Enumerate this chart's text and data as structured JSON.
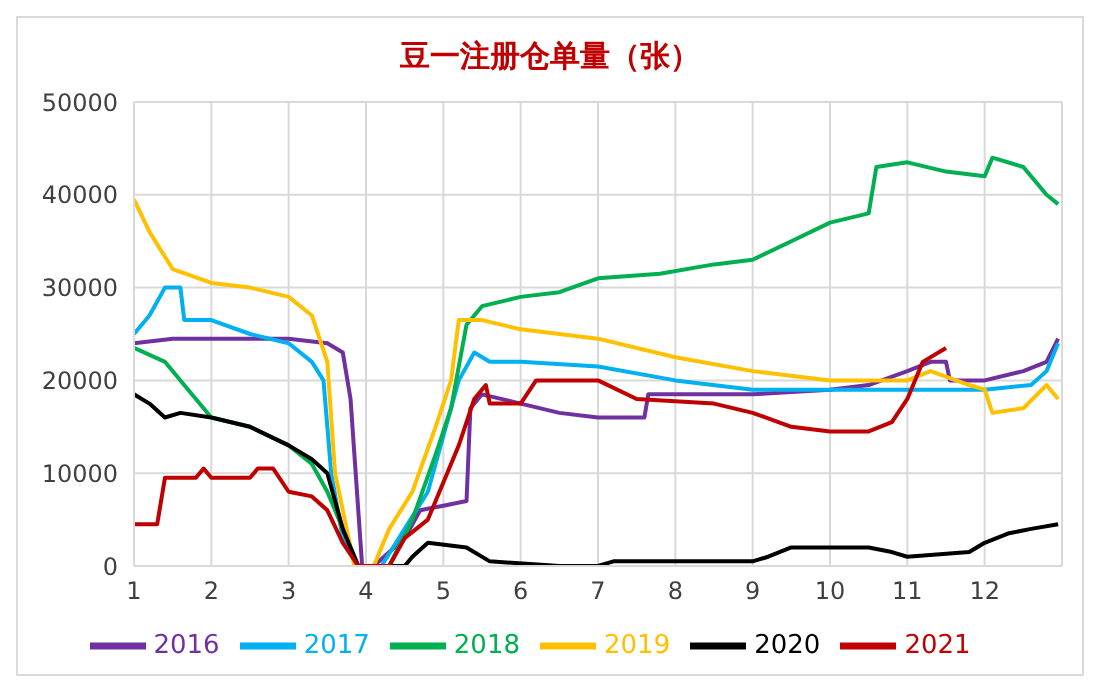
{
  "chart_data": {
    "type": "line",
    "title": "豆一注册仓单量（张）",
    "xlim": [
      1,
      13
    ],
    "xticks": [
      1,
      2,
      3,
      4,
      5,
      6,
      7,
      8,
      9,
      10,
      11,
      12
    ],
    "ylim": [
      0,
      50000
    ],
    "yticks": [
      0,
      10000,
      20000,
      30000,
      40000,
      50000
    ],
    "grid": true,
    "legend": "bottom",
    "marker": "none",
    "line_style": "solid",
    "series": [
      {
        "name": "2016",
        "color": "#7030a0",
        "x": [
          1,
          1.5,
          3,
          3.5,
          3.7,
          3.8,
          3.85,
          3.95,
          4.1,
          4.5,
          4.7,
          5,
          5.3,
          5.35,
          5.5,
          6,
          6.5,
          7,
          7.6,
          7.65,
          9,
          10,
          10.5,
          11,
          11.3,
          11.5,
          11.55,
          12,
          12.5,
          12.8,
          12.95
        ],
        "values": [
          24000,
          24500,
          24500,
          24000,
          23000,
          18000,
          12000,
          0,
          0,
          3000,
          6000,
          6500,
          7000,
          17000,
          18500,
          17500,
          16500,
          16000,
          16000,
          18500,
          18500,
          19000,
          19500,
          21000,
          22000,
          22000,
          20000,
          20000,
          21000,
          22000,
          24500
        ]
      },
      {
        "name": "2017",
        "color": "#00b0f0",
        "x": [
          1,
          1.2,
          1.4,
          1.6,
          1.65,
          2,
          2.5,
          3,
          3.3,
          3.45,
          3.55,
          3.7,
          3.9,
          4.2,
          4.5,
          4.8,
          5,
          5.2,
          5.4,
          5.6,
          6,
          7,
          8,
          9,
          10,
          11,
          12,
          12.6,
          12.8,
          12.95
        ],
        "values": [
          25000,
          27000,
          30000,
          30000,
          26500,
          26500,
          25000,
          24000,
          22000,
          20000,
          10000,
          3000,
          0,
          0,
          4000,
          8000,
          14000,
          20000,
          23000,
          22000,
          22000,
          21500,
          20000,
          19000,
          19000,
          19000,
          19000,
          19500,
          21000,
          24000
        ]
      },
      {
        "name": "2018",
        "color": "#00b050",
        "x": [
          1,
          1.4,
          1.7,
          2,
          2.5,
          3,
          3.3,
          3.5,
          3.7,
          3.9,
          4.3,
          4.6,
          4.9,
          5.1,
          5.3,
          5.5,
          6,
          6.5,
          7,
          7.8,
          8.5,
          9,
          9.5,
          10,
          10.5,
          10.6,
          11,
          11.5,
          12,
          12.1,
          12.5,
          12.8,
          12.95
        ],
        "values": [
          23500,
          22000,
          19000,
          16000,
          15000,
          13000,
          11000,
          8000,
          4000,
          0,
          0,
          5000,
          12000,
          17000,
          26000,
          28000,
          29000,
          29500,
          31000,
          31500,
          32500,
          33000,
          35000,
          37000,
          38000,
          43000,
          43500,
          42500,
          42000,
          44000,
          43000,
          40000,
          39000
        ]
      },
      {
        "name": "2019",
        "color": "#ffc000",
        "x": [
          1,
          1.2,
          1.5,
          2,
          2.5,
          3,
          3.3,
          3.5,
          3.6,
          3.85,
          4.1,
          4.3,
          4.6,
          4.9,
          5.1,
          5.2,
          5.5,
          6,
          7,
          8,
          9,
          10,
          11,
          11.3,
          11.8,
          12,
          12.1,
          12.5,
          12.8,
          12.95
        ],
        "values": [
          39500,
          36000,
          32000,
          30500,
          30000,
          29000,
          27000,
          22000,
          10000,
          0,
          0,
          4000,
          8000,
          15000,
          20000,
          26500,
          26500,
          25500,
          24500,
          22500,
          21000,
          20000,
          20000,
          21000,
          19500,
          19000,
          16500,
          17000,
          19500,
          18000
        ]
      },
      {
        "name": "2020",
        "color": "#000000",
        "x": [
          1,
          1.2,
          1.4,
          1.6,
          2,
          2.5,
          3,
          3.3,
          3.5,
          3.7,
          3.9,
          4.5,
          4.6,
          4.8,
          5.3,
          5.6,
          6.5,
          7,
          7.2,
          8.5,
          9,
          9.2,
          9.5,
          10.5,
          10.8,
          11,
          11.8,
          12,
          12.3,
          12.6,
          12.95
        ],
        "values": [
          18500,
          17500,
          16000,
          16500,
          16000,
          15000,
          13000,
          11500,
          10000,
          4000,
          0,
          0,
          1000,
          2500,
          2000,
          500,
          0,
          0,
          500,
          500,
          500,
          1000,
          2000,
          2000,
          1500,
          1000,
          1500,
          2500,
          3500,
          4000,
          4500
        ]
      },
      {
        "name": "2021",
        "color": "#c00000",
        "x": [
          1,
          1.3,
          1.4,
          1.8,
          1.9,
          2,
          2.5,
          2.6,
          2.8,
          3,
          3.3,
          3.5,
          3.7,
          3.9,
          4.3,
          4.5,
          4.8,
          5,
          5.2,
          5.4,
          5.55,
          5.6,
          6,
          6.2,
          7,
          7.5,
          8.5,
          9,
          9.5,
          10,
          10.5,
          10.8,
          11,
          11.2,
          11.5
        ],
        "values": [
          4500,
          4500,
          9500,
          9500,
          10500,
          9500,
          9500,
          10500,
          10500,
          8000,
          7500,
          6000,
          2500,
          0,
          0,
          3000,
          5000,
          9000,
          13000,
          18000,
          19500,
          17500,
          17500,
          20000,
          20000,
          18000,
          17500,
          16500,
          15000,
          14500,
          14500,
          15500,
          18000,
          22000,
          23500
        ]
      }
    ]
  }
}
